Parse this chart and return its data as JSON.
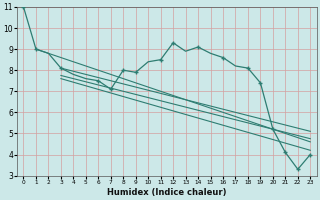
{
  "xlabel": "Humidex (Indice chaleur)",
  "background_color": "#cce8e8",
  "grid_color": "#b8d8d8",
  "line_color": "#2e7d72",
  "xlim": [
    -0.5,
    23.5
  ],
  "ylim": [
    3,
    11
  ],
  "xticks": [
    0,
    1,
    2,
    3,
    4,
    5,
    6,
    7,
    8,
    9,
    10,
    11,
    12,
    13,
    14,
    15,
    16,
    17,
    18,
    19,
    20,
    21,
    22,
    23
  ],
  "yticks": [
    3,
    4,
    5,
    6,
    7,
    8,
    9,
    10,
    11
  ],
  "main_x": [
    0,
    1,
    2,
    3,
    4,
    5,
    6,
    7,
    8,
    9,
    10,
    11,
    12,
    13,
    14,
    15,
    16,
    17,
    18,
    19,
    20,
    21,
    22,
    23
  ],
  "main_y": [
    11.0,
    9.0,
    8.8,
    8.1,
    7.8,
    7.6,
    7.5,
    7.1,
    8.0,
    7.9,
    8.4,
    8.5,
    9.3,
    8.9,
    9.1,
    8.8,
    8.6,
    8.2,
    8.1,
    7.4,
    5.2,
    4.1,
    3.3,
    4.0
  ],
  "trend1_x": [
    1,
    23
  ],
  "trend1_y": [
    9.0,
    4.6
  ],
  "trend2_x": [
    3,
    23
  ],
  "trend2_y": [
    8.1,
    5.1
  ],
  "trend3_x": [
    3,
    23
  ],
  "trend3_y": [
    7.75,
    4.75
  ],
  "trend4_x": [
    3,
    23
  ],
  "trend4_y": [
    7.6,
    4.2
  ],
  "marker_x": [
    0,
    1,
    3,
    6,
    7,
    8,
    9,
    11,
    12,
    14,
    16,
    18,
    19,
    20,
    21,
    22,
    23
  ],
  "marker_y": [
    11.0,
    9.0,
    8.1,
    7.5,
    7.1,
    8.0,
    7.9,
    8.5,
    9.3,
    9.1,
    8.6,
    8.1,
    7.4,
    5.2,
    4.1,
    3.3,
    4.0
  ]
}
